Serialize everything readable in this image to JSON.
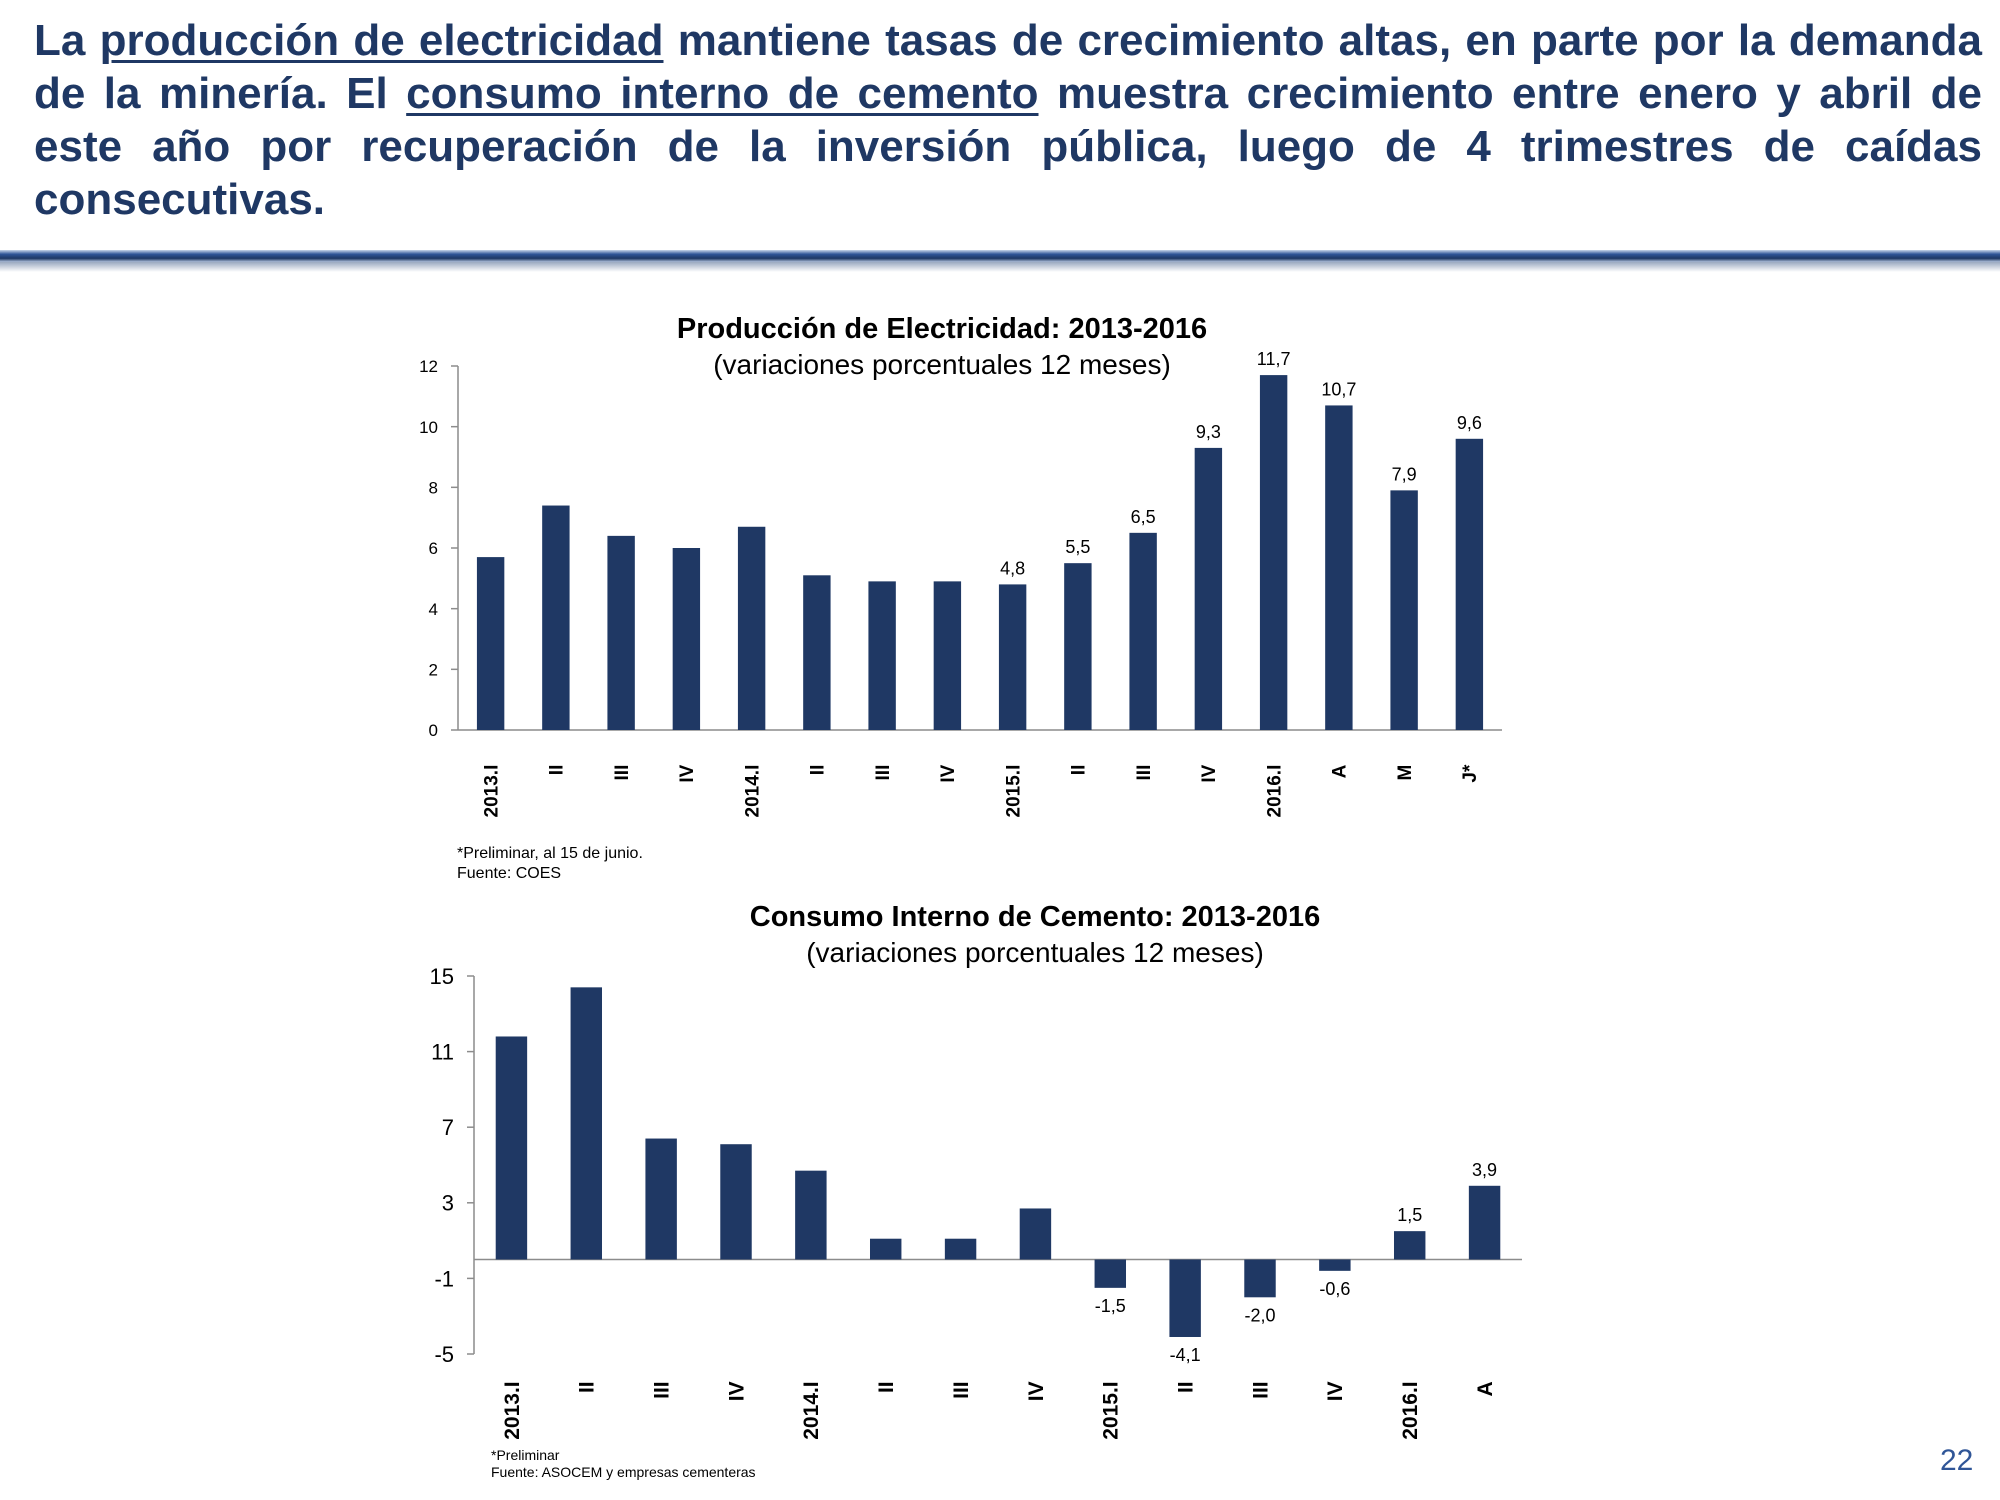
{
  "headline": {
    "intro": "La ",
    "link1": "producción de electricidad",
    "middle": " mantiene tasas de crecimiento altas, en parte por la demanda de la minería. El ",
    "link2": "consumo interno de cemento",
    "outro": " muestra crecimiento entre enero y abril de este año por recuperación de la inversión pública, luego de 4 trimestres de caídas consecutivas."
  },
  "colors": {
    "bar": "#1f3864",
    "headline": "#1f3864",
    "divider": "#2f5597",
    "page_number": "#2f5597"
  },
  "page_number": "22",
  "chart_data": [
    {
      "type": "bar",
      "title": "Producción de Electricidad: 2013-2016",
      "subtitle": "(variaciones porcentuales 12 meses)",
      "categories": [
        "2013.I",
        "II",
        "III",
        "IV",
        "2014.I",
        "II",
        "III",
        "IV",
        "2015.I",
        "II",
        "III",
        "IV",
        "2016.I",
        "A",
        "M",
        "J*"
      ],
      "values": [
        5.7,
        7.4,
        6.4,
        6.0,
        6.7,
        5.1,
        4.9,
        4.9,
        4.8,
        5.5,
        6.5,
        9.3,
        11.7,
        10.7,
        7.9,
        9.6
      ],
      "data_labels": [
        "",
        "",
        "",
        "",
        "",
        "",
        "",
        "",
        "4,8",
        "5,5",
        "6,5",
        "9,3",
        "11,7",
        "10,7",
        "7,9",
        "9,6"
      ],
      "ylim": [
        0,
        12
      ],
      "yticks": [
        0,
        2,
        4,
        6,
        8,
        10,
        12
      ],
      "ytick_labels": [
        "0",
        "2",
        "4",
        "6",
        "8",
        "10",
        "12"
      ],
      "grid": false,
      "legend": "none",
      "notes": [
        "*Preliminar, al 15 de junio.",
        "Fuente: COES"
      ]
    },
    {
      "type": "bar",
      "title": "Consumo Interno de Cemento: 2013-2016",
      "subtitle": "(variaciones porcentuales 12 meses)",
      "categories": [
        "2013.I",
        "II",
        "III",
        "IV",
        "2014.I",
        "II",
        "III",
        "IV",
        "2015.I",
        "II",
        "III",
        "IV",
        "2016.I",
        "A"
      ],
      "values": [
        11.8,
        14.4,
        6.4,
        6.1,
        4.7,
        1.1,
        1.1,
        2.7,
        -1.5,
        -4.1,
        -2.0,
        -0.6,
        1.5,
        3.9
      ],
      "data_labels": [
        "",
        "",
        "",
        "",
        "",
        "",
        "",
        "",
        "-1,5",
        "-4,1",
        "-2,0",
        "-0,6",
        "1,5",
        "3,9"
      ],
      "ylim": [
        -5,
        15
      ],
      "yticks": [
        -5,
        -1,
        3,
        7,
        11,
        15
      ],
      "ytick_labels": [
        "-5",
        "-1",
        "3",
        "7",
        "11",
        "15"
      ],
      "grid": false,
      "legend": "none",
      "notes": [
        "*Preliminar",
        "Fuente: ASOCEM y empresas cementeras"
      ]
    }
  ]
}
